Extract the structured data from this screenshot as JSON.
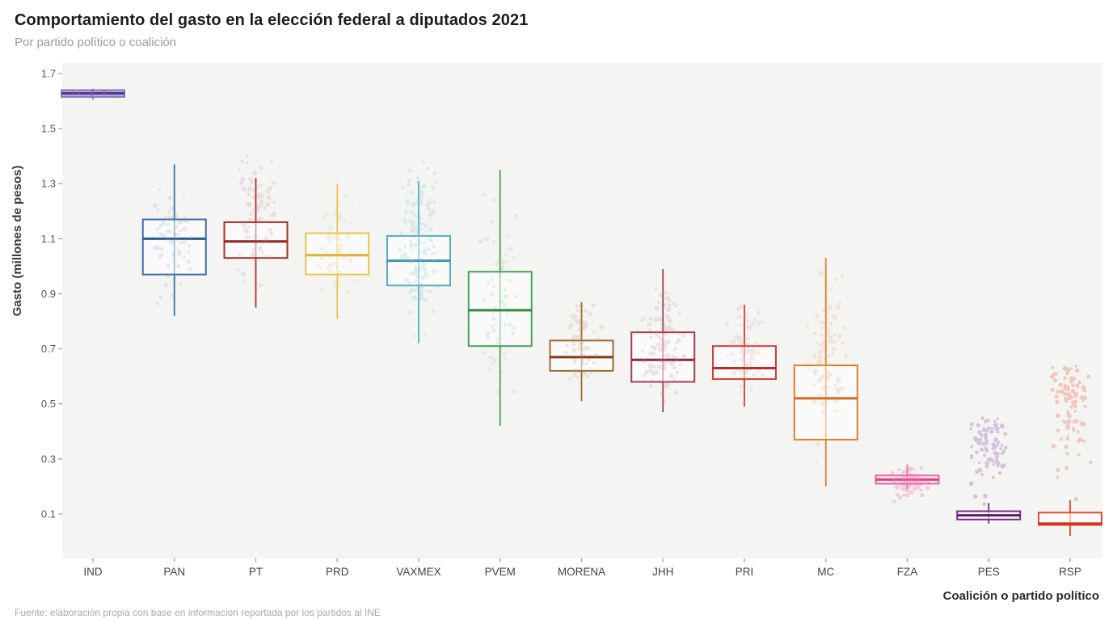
{
  "header": {
    "title": "Comportamiento del gasto en la elección federal a diputados 2021",
    "subtitle": "Por partido político o coalición"
  },
  "footer": {
    "source": "Fuente: elaboración propia con base en información reportada por los partidos al INE"
  },
  "chart_data": {
    "type": "boxplot",
    "title": "Comportamiento del gasto en la elección federal a diputados 2021",
    "subtitle": "Por partido político o coalición",
    "xlabel": "Coalición o partido político",
    "ylabel": "Gasto (millones de pesos)",
    "ylim": [
      0.0,
      1.73
    ],
    "yticks": [
      1.7,
      1.5,
      1.3,
      1.1,
      0.9,
      0.7,
      0.5,
      0.3,
      0.1
    ],
    "grid": false,
    "legend": "none",
    "panel_background": "#f4f4f3",
    "categories": [
      "IND",
      "PAN",
      "PT",
      "PRD",
      "VAXMEX",
      "PVEM",
      "MORENA",
      "JHH",
      "PRI",
      "MC",
      "FZA",
      "PES",
      "RSP"
    ],
    "series": [
      {
        "name": "IND",
        "whisker_low": 1.605,
        "q1": 1.615,
        "median": 1.628,
        "q3": 1.64,
        "whisker_high": 1.645,
        "color": "#8a79c0",
        "median_color": "#4e3d85",
        "fill": "rgba(178,160,216,0.9)",
        "jitter": {
          "count": 6,
          "min": 1.6,
          "max": 1.65,
          "color": "#7a68b5",
          "opacity": 0.45,
          "skew": 1
        }
      },
      {
        "name": "PAN",
        "whisker_low": 0.82,
        "q1": 0.97,
        "median": 1.1,
        "q3": 1.17,
        "whisker_high": 1.37,
        "color": "#3d6ea6",
        "median_color": "#2e5a8f",
        "fill": "rgba(255,255,255,0.55)",
        "jitter": {
          "count": 70,
          "min": 0.82,
          "max": 1.38,
          "color": "#8fa0bd",
          "opacity": 0.2,
          "skew": 1
        }
      },
      {
        "name": "PT",
        "whisker_low": 0.85,
        "q1": 1.03,
        "median": 1.09,
        "q3": 1.16,
        "whisker_high": 1.32,
        "color": "#a3322a",
        "median_color": "#8e231e",
        "fill": "rgba(255,255,255,0.55)",
        "jitter": {
          "count": 85,
          "min": 0.85,
          "max": 1.49,
          "color": "#c08a92",
          "opacity": 0.2,
          "skew": 1.1
        }
      },
      {
        "name": "PRD",
        "whisker_low": 0.81,
        "q1": 0.97,
        "median": 1.04,
        "q3": 1.12,
        "whisker_high": 1.3,
        "color": "#edc34f",
        "median_color": "#e0ae33",
        "fill": "rgba(255,255,255,0.55)",
        "jitter": {
          "count": 55,
          "min": 0.8,
          "max": 1.31,
          "color": "#e6cd8a",
          "opacity": 0.25,
          "skew": 1
        }
      },
      {
        "name": "VAXMEX",
        "whisker_low": 0.72,
        "q1": 0.93,
        "median": 1.02,
        "q3": 1.11,
        "whisker_high": 1.31,
        "color": "#57aebc",
        "median_color": "#3f96a6",
        "fill": "rgba(255,255,255,0.5)",
        "jitter": {
          "count": 130,
          "min": 0.72,
          "max": 1.46,
          "color": "#8accd6",
          "opacity": 0.25,
          "skew": 1
        }
      },
      {
        "name": "PVEM",
        "whisker_low": 0.42,
        "q1": 0.71,
        "median": 0.84,
        "q3": 0.98,
        "whisker_high": 1.35,
        "color": "#48a355",
        "median_color": "#348740",
        "fill": "rgba(255,255,255,0.55)",
        "jitter": {
          "count": 65,
          "min": 0.4,
          "max": 1.35,
          "color": "#92cb9a",
          "opacity": 0.22,
          "skew": 1.1
        }
      },
      {
        "name": "MORENA",
        "whisker_low": 0.51,
        "q1": 0.62,
        "median": 0.67,
        "q3": 0.73,
        "whisker_high": 0.87,
        "color": "#9c6833",
        "median_color": "#84381f",
        "fill": "rgba(255,255,255,0.55)",
        "jitter": {
          "count": 65,
          "min": 0.5,
          "max": 0.93,
          "color": "#bf9a78",
          "opacity": 0.22,
          "skew": 1
        }
      },
      {
        "name": "JHH",
        "whisker_low": 0.47,
        "q1": 0.58,
        "median": 0.66,
        "q3": 0.76,
        "whisker_high": 0.99,
        "color": "#a23c52",
        "median_color": "#8a2840",
        "fill": "rgba(255,255,255,0.55)",
        "jitter": {
          "count": 110,
          "min": 0.46,
          "max": 0.99,
          "color": "#c28a9b",
          "opacity": 0.22,
          "skew": 1
        }
      },
      {
        "name": "PRI",
        "whisker_low": 0.49,
        "q1": 0.59,
        "median": 0.63,
        "q3": 0.71,
        "whisker_high": 0.86,
        "color": "#cf3e33",
        "median_color": "#b82a22",
        "fill": "rgba(255,255,255,0.55)",
        "jitter": {
          "count": 75,
          "min": 0.48,
          "max": 0.92,
          "color": "#dc9a92",
          "opacity": 0.18,
          "skew": 1
        }
      },
      {
        "name": "MC",
        "whisker_low": 0.2,
        "q1": 0.37,
        "median": 0.52,
        "q3": 0.64,
        "whisker_high": 1.03,
        "color": "#e27f30",
        "median_color": "#d06a1e",
        "fill": "rgba(255,255,255,0.55)",
        "jitter": {
          "count": 95,
          "min": 0.2,
          "max": 1.03,
          "color": "#ecae7c",
          "opacity": 0.25,
          "skew": 1.15
        }
      },
      {
        "name": "FZA",
        "whisker_low": 0.19,
        "q1": 0.21,
        "median": 0.225,
        "q3": 0.24,
        "whisker_high": 0.28,
        "color": "#ee67a4",
        "median_color": "#d6417e",
        "fill": "rgba(253,233,242,0.85)",
        "jitter": {
          "count": 85,
          "min": 0.13,
          "max": 0.3,
          "color": "#ef7ab0",
          "opacity": 0.35,
          "skew": 1
        }
      },
      {
        "name": "PES",
        "whisker_low": 0.065,
        "q1": 0.08,
        "median": 0.095,
        "q3": 0.11,
        "whisker_high": 0.14,
        "color": "#722d86",
        "median_color": "#5a1c70",
        "fill": "rgba(255,255,255,0.6)",
        "jitter": {
          "count": 85,
          "min": 0.03,
          "max": 0.45,
          "color": "#9a5cb0",
          "opacity": 0.32,
          "skew": 2.0
        }
      },
      {
        "name": "RSP",
        "whisker_low": 0.02,
        "q1": 0.06,
        "median": 0.065,
        "q3": 0.105,
        "whisker_high": 0.15,
        "color": "#e2492f",
        "median_color": "#cc331c",
        "fill": "rgba(255,255,255,0.6)",
        "jitter": {
          "count": 90,
          "min": 0.01,
          "max": 0.66,
          "color": "#ea6a50",
          "opacity": 0.32,
          "skew": 2.2
        }
      }
    ]
  }
}
